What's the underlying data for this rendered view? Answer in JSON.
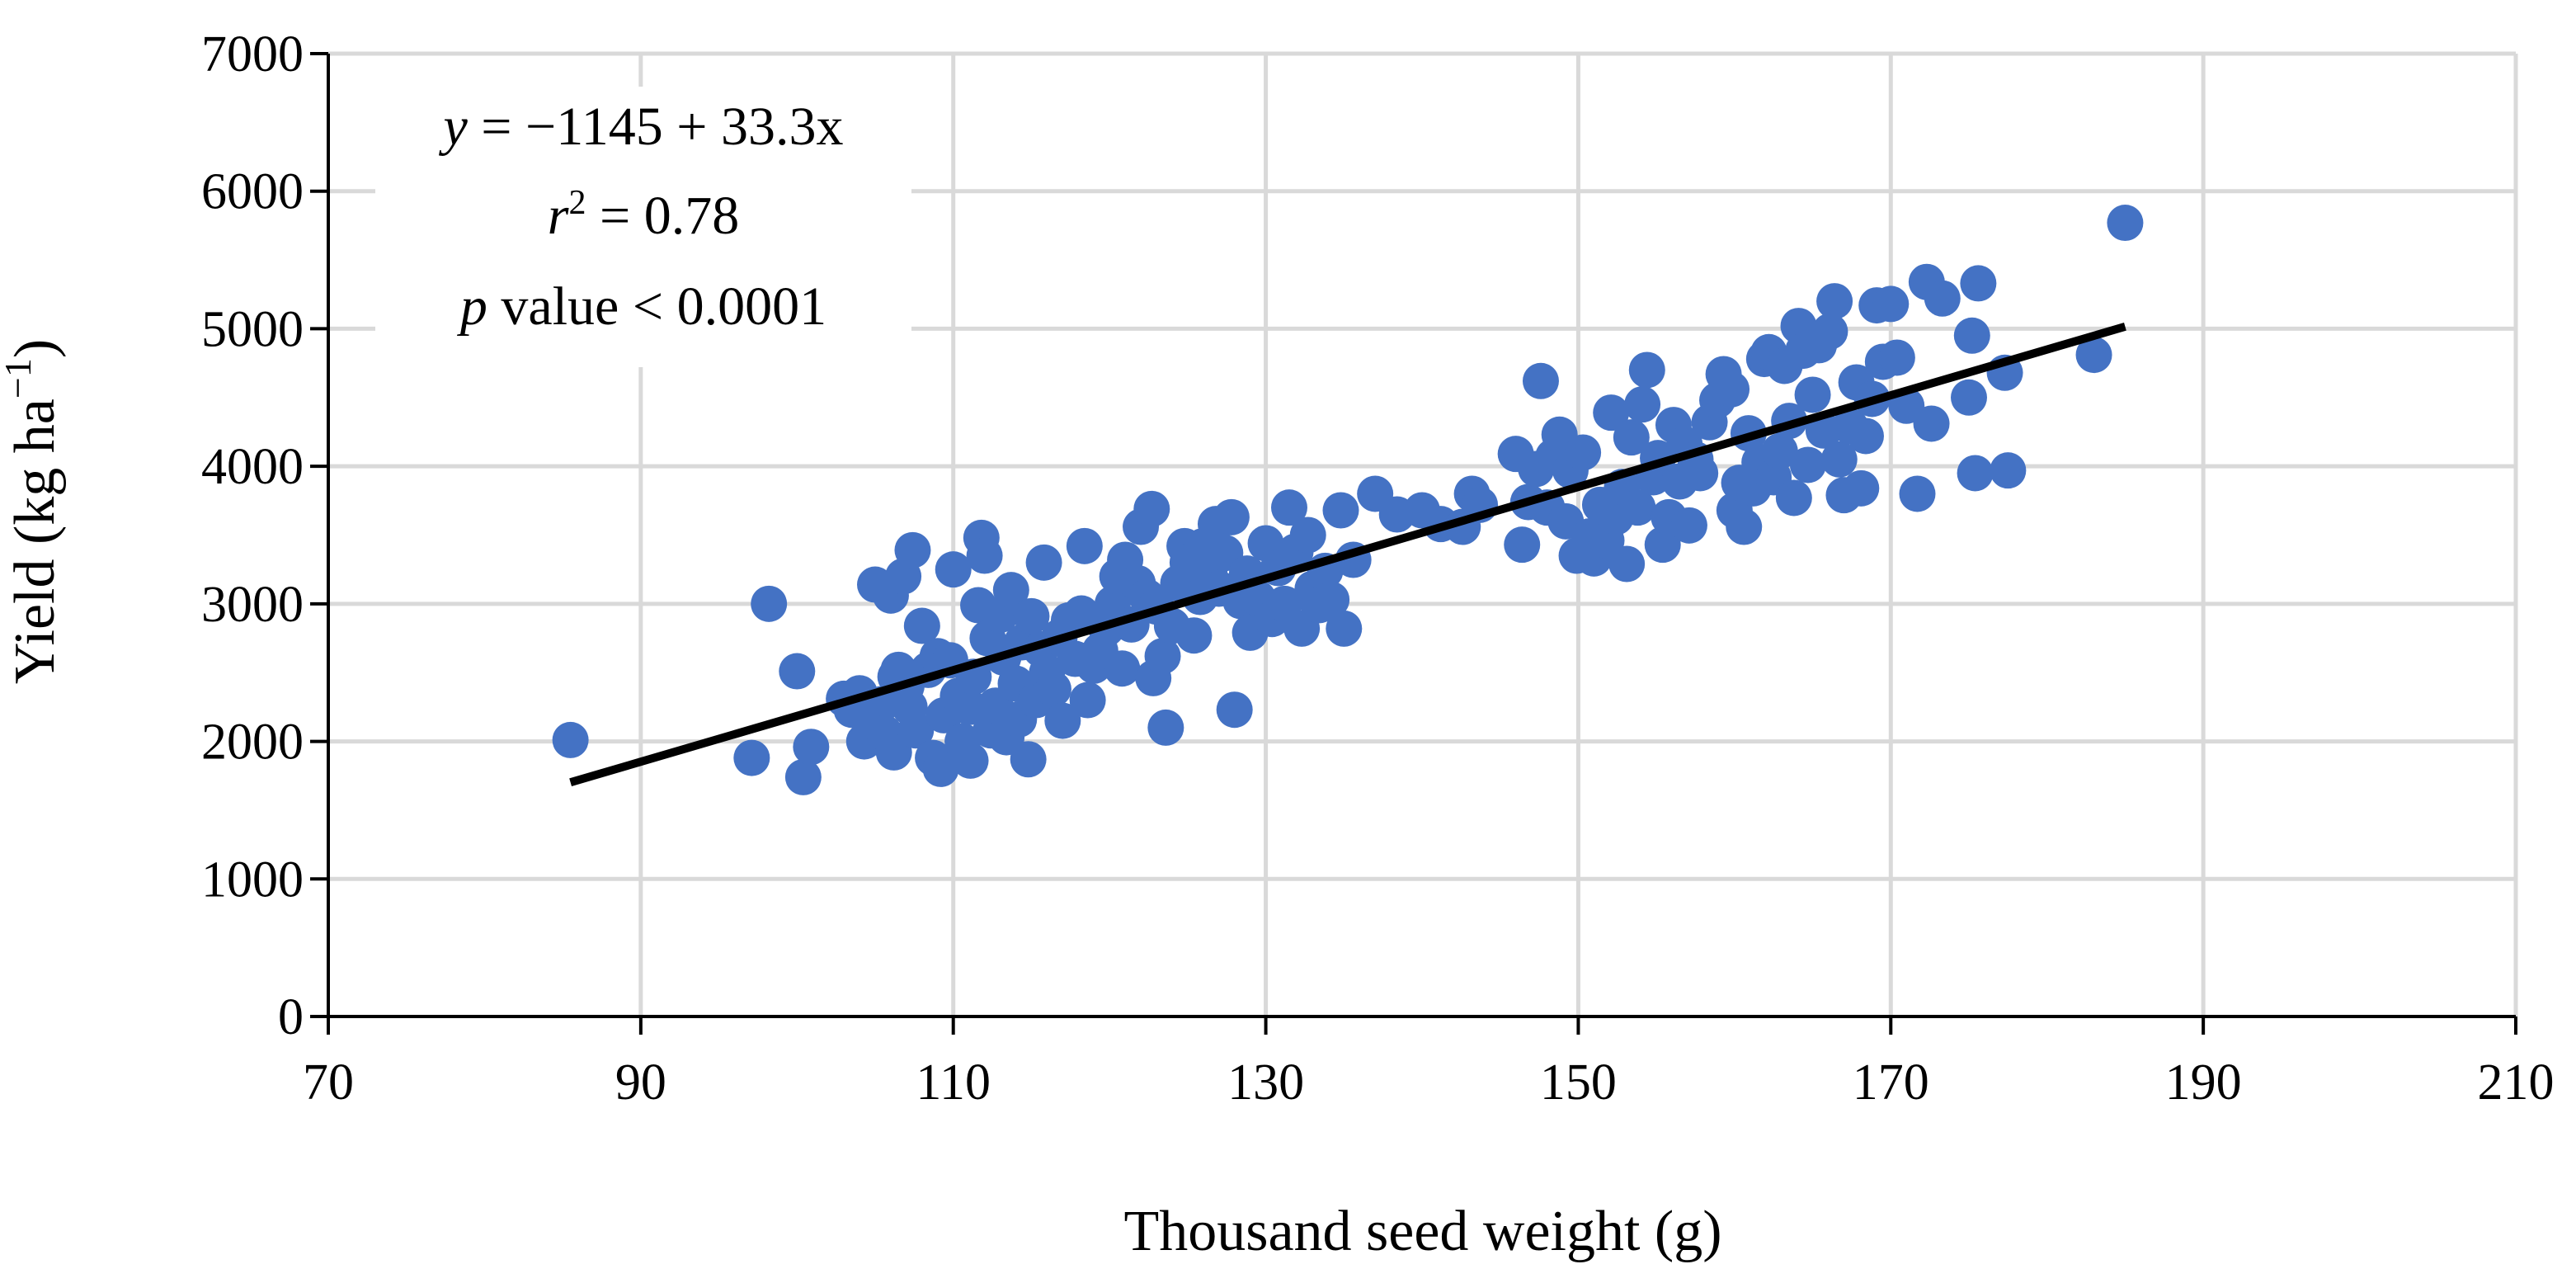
{
  "chart_data": {
    "type": "scatter",
    "title": "",
    "xlabel": "Thousand seed weight (g)",
    "ylabel_parts": {
      "main": "Yield (kg ha",
      "sup": "−1",
      "close": ")"
    },
    "xlim": [
      70,
      210
    ],
    "ylim": [
      0,
      7000
    ],
    "x_ticks": [
      70,
      90,
      110,
      130,
      150,
      170,
      190,
      210
    ],
    "y_ticks": [
      0,
      1000,
      2000,
      3000,
      4000,
      5000,
      6000,
      7000
    ],
    "grid": true,
    "marker_color": "#4472c4",
    "trend_color": "#000000",
    "annotation": {
      "equation": {
        "var": "y",
        "rest": " = −1145 + 33.3x"
      },
      "r2": {
        "var": "r",
        "sup": "2",
        "rest": " = 0.78"
      },
      "pvalue": {
        "var": "p",
        "rest": " value < 0.0001"
      }
    },
    "trendline": {
      "intercept": -1145,
      "slope": 33.3,
      "x_range": [
        85.5,
        185
      ]
    },
    "points": [
      [
        85.5,
        2010
      ],
      [
        97.1,
        1880
      ],
      [
        98.2,
        3000
      ],
      [
        100.0,
        2510
      ],
      [
        100.4,
        1740
      ],
      [
        100.9,
        1960
      ],
      [
        103.0,
        2310
      ],
      [
        103.5,
        2230
      ],
      [
        104.0,
        2350
      ],
      [
        104.3,
        2000
      ],
      [
        104.6,
        2150
      ],
      [
        105.0,
        3140
      ],
      [
        105.4,
        2270
      ],
      [
        105.6,
        2060
      ],
      [
        106.0,
        3060
      ],
      [
        106.2,
        1920
      ],
      [
        106.3,
        2470
      ],
      [
        106.5,
        2520
      ],
      [
        106.8,
        3200
      ],
      [
        107.0,
        2400
      ],
      [
        107.2,
        2250
      ],
      [
        107.4,
        3390
      ],
      [
        107.6,
        2080
      ],
      [
        108.0,
        2840
      ],
      [
        108.4,
        2520
      ],
      [
        108.7,
        1880
      ],
      [
        109.0,
        2620
      ],
      [
        109.2,
        1800
      ],
      [
        109.4,
        2190
      ],
      [
        109.8,
        2590
      ],
      [
        110.0,
        3250
      ],
      [
        110.3,
        2330
      ],
      [
        110.6,
        2000
      ],
      [
        111.0,
        2250
      ],
      [
        111.1,
        1860
      ],
      [
        111.3,
        2470
      ],
      [
        111.6,
        2990
      ],
      [
        111.8,
        3480
      ],
      [
        112.0,
        3350
      ],
      [
        112.2,
        2750
      ],
      [
        112.4,
        2080
      ],
      [
        112.7,
        2260
      ],
      [
        113.0,
        2920
      ],
      [
        113.2,
        2610
      ],
      [
        113.4,
        2030
      ],
      [
        113.7,
        3100
      ],
      [
        114.0,
        2420
      ],
      [
        114.2,
        2160
      ],
      [
        114.4,
        2720
      ],
      [
        114.8,
        1870
      ],
      [
        115.0,
        2910
      ],
      [
        115.3,
        2300
      ],
      [
        115.6,
        2670
      ],
      [
        115.8,
        3300
      ],
      [
        116.0,
        2500
      ],
      [
        116.4,
        2380
      ],
      [
        116.8,
        2760
      ],
      [
        117.0,
        2150
      ],
      [
        117.4,
        2880
      ],
      [
        117.8,
        2600
      ],
      [
        118.2,
        2930
      ],
      [
        118.4,
        3420
      ],
      [
        118.6,
        2300
      ],
      [
        119.0,
        2550
      ],
      [
        119.4,
        2660
      ],
      [
        119.8,
        2820
      ],
      [
        120.2,
        3000
      ],
      [
        120.5,
        3200
      ],
      [
        120.8,
        2530
      ],
      [
        121.0,
        3320
      ],
      [
        121.4,
        2850
      ],
      [
        121.8,
        3150
      ],
      [
        122.0,
        3560
      ],
      [
        122.4,
        3050
      ],
      [
        122.7,
        3690
      ],
      [
        122.8,
        2460
      ],
      [
        123.0,
        2980
      ],
      [
        123.4,
        2620
      ],
      [
        123.6,
        2100
      ],
      [
        124.0,
        2840
      ],
      [
        124.4,
        3150
      ],
      [
        124.8,
        3420
      ],
      [
        125.0,
        3300
      ],
      [
        125.4,
        2770
      ],
      [
        125.8,
        3050
      ],
      [
        126.0,
        3420
      ],
      [
        126.4,
        3250
      ],
      [
        126.8,
        3580
      ],
      [
        127.0,
        3110
      ],
      [
        127.4,
        3370
      ],
      [
        127.8,
        3630
      ],
      [
        128.0,
        2230
      ],
      [
        128.4,
        3020
      ],
      [
        128.8,
        3220
      ],
      [
        129.0,
        2790
      ],
      [
        129.5,
        3040
      ],
      [
        130.0,
        3440
      ],
      [
        130.4,
        2890
      ],
      [
        130.8,
        3260
      ],
      [
        131.2,
        3000
      ],
      [
        131.5,
        3700
      ],
      [
        131.9,
        3380
      ],
      [
        132.3,
        2820
      ],
      [
        132.7,
        3500
      ],
      [
        133.0,
        3110
      ],
      [
        133.4,
        2990
      ],
      [
        133.8,
        3240
      ],
      [
        134.2,
        3030
      ],
      [
        134.8,
        3680
      ],
      [
        135.0,
        2820
      ],
      [
        135.6,
        3320
      ],
      [
        137.0,
        3800
      ],
      [
        138.4,
        3650
      ],
      [
        140.0,
        3680
      ],
      [
        141.2,
        3580
      ],
      [
        142.6,
        3560
      ],
      [
        143.2,
        3800
      ],
      [
        143.7,
        3720
      ],
      [
        146.0,
        4090
      ],
      [
        146.4,
        3430
      ],
      [
        146.8,
        3740
      ],
      [
        147.3,
        3980
      ],
      [
        147.6,
        4620
      ],
      [
        148.0,
        3700
      ],
      [
        148.4,
        4070
      ],
      [
        148.8,
        4230
      ],
      [
        149.2,
        3600
      ],
      [
        149.5,
        3970
      ],
      [
        149.9,
        3350
      ],
      [
        150.3,
        4100
      ],
      [
        150.7,
        3490
      ],
      [
        151.0,
        3330
      ],
      [
        151.4,
        3720
      ],
      [
        151.8,
        3460
      ],
      [
        152.1,
        4390
      ],
      [
        152.4,
        3630
      ],
      [
        152.8,
        3850
      ],
      [
        153.1,
        3290
      ],
      [
        153.4,
        4210
      ],
      [
        153.8,
        3700
      ],
      [
        154.1,
        4450
      ],
      [
        154.4,
        4700
      ],
      [
        154.8,
        3920
      ],
      [
        155.1,
        4060
      ],
      [
        155.4,
        3430
      ],
      [
        155.8,
        3630
      ],
      [
        156.1,
        4300
      ],
      [
        156.5,
        3890
      ],
      [
        156.8,
        4160
      ],
      [
        157.1,
        3570
      ],
      [
        157.5,
        4050
      ],
      [
        157.8,
        3950
      ],
      [
        158.4,
        4320
      ],
      [
        158.9,
        4480
      ],
      [
        159.3,
        4670
      ],
      [
        159.8,
        4560
      ],
      [
        160.0,
        3680
      ],
      [
        160.3,
        3880
      ],
      [
        160.6,
        3560
      ],
      [
        160.9,
        4240
      ],
      [
        161.2,
        3840
      ],
      [
        161.6,
        4030
      ],
      [
        161.9,
        4780
      ],
      [
        162.2,
        4830
      ],
      [
        162.5,
        3920
      ],
      [
        162.9,
        4110
      ],
      [
        163.2,
        4730
      ],
      [
        163.5,
        4330
      ],
      [
        163.8,
        3770
      ],
      [
        164.1,
        5020
      ],
      [
        164.4,
        4840
      ],
      [
        164.7,
        4010
      ],
      [
        165.0,
        4520
      ],
      [
        165.4,
        4880
      ],
      [
        165.7,
        4260
      ],
      [
        166.1,
        4980
      ],
      [
        166.4,
        5200
      ],
      [
        166.7,
        4050
      ],
      [
        167.0,
        3790
      ],
      [
        167.4,
        4290
      ],
      [
        167.8,
        4610
      ],
      [
        168.1,
        3840
      ],
      [
        168.4,
        4220
      ],
      [
        168.8,
        4490
      ],
      [
        169.1,
        5170
      ],
      [
        169.5,
        4760
      ],
      [
        170.0,
        5180
      ],
      [
        170.4,
        4790
      ],
      [
        171.0,
        4440
      ],
      [
        171.7,
        3800
      ],
      [
        172.3,
        5340
      ],
      [
        172.6,
        4310
      ],
      [
        173.3,
        5220
      ],
      [
        175.0,
        4500
      ],
      [
        175.2,
        4950
      ],
      [
        175.4,
        3950
      ],
      [
        175.6,
        5330
      ],
      [
        177.3,
        4680
      ],
      [
        177.5,
        3970
      ],
      [
        183.0,
        4810
      ],
      [
        185.0,
        5770
      ]
    ]
  }
}
